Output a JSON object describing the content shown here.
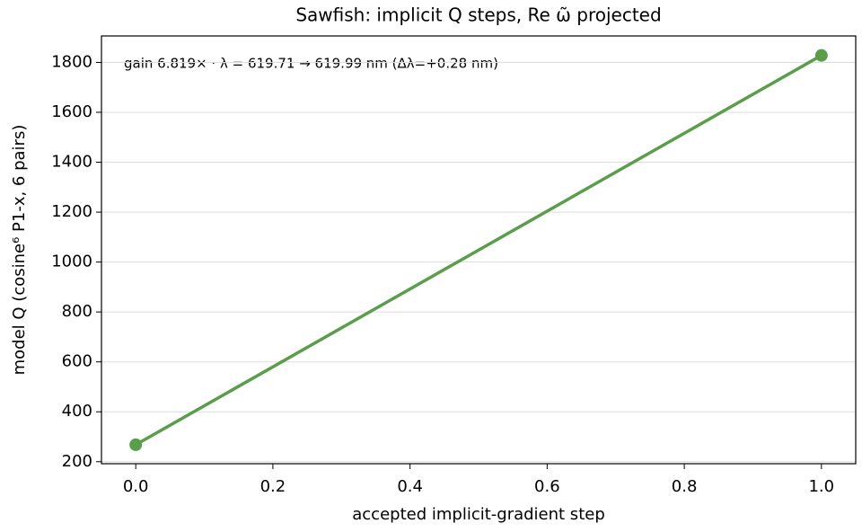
{
  "chart_data": {
    "type": "line",
    "title": "Sawfish: implicit Q steps, Re ω̃ projected",
    "x_label": "accepted implicit-gradient step",
    "y_label": "model Q (cosine⁶ P1-x, 6 pairs)",
    "annotation": "gain 6.819×  ·  λ = 619.71 → 619.99 nm  (Δλ=+0.28 nm)",
    "x": [
      0,
      1
    ],
    "series": [
      {
        "name": "model Q",
        "color": "#5a9e4b",
        "values": [
          268,
          1828
        ]
      }
    ],
    "xlim": [
      -0.05,
      1.05
    ],
    "xticks": [
      {
        "value": 0,
        "label": "0.0"
      },
      0.2,
      0.4,
      0.6,
      0.8,
      {
        "value": 1,
        "label": "1.0"
      }
    ],
    "ylim": [
      192,
      1906
    ],
    "yticks": [
      200,
      400,
      600,
      800,
      1000,
      1200,
      1400,
      1600,
      1800
    ],
    "grid": "y"
  }
}
